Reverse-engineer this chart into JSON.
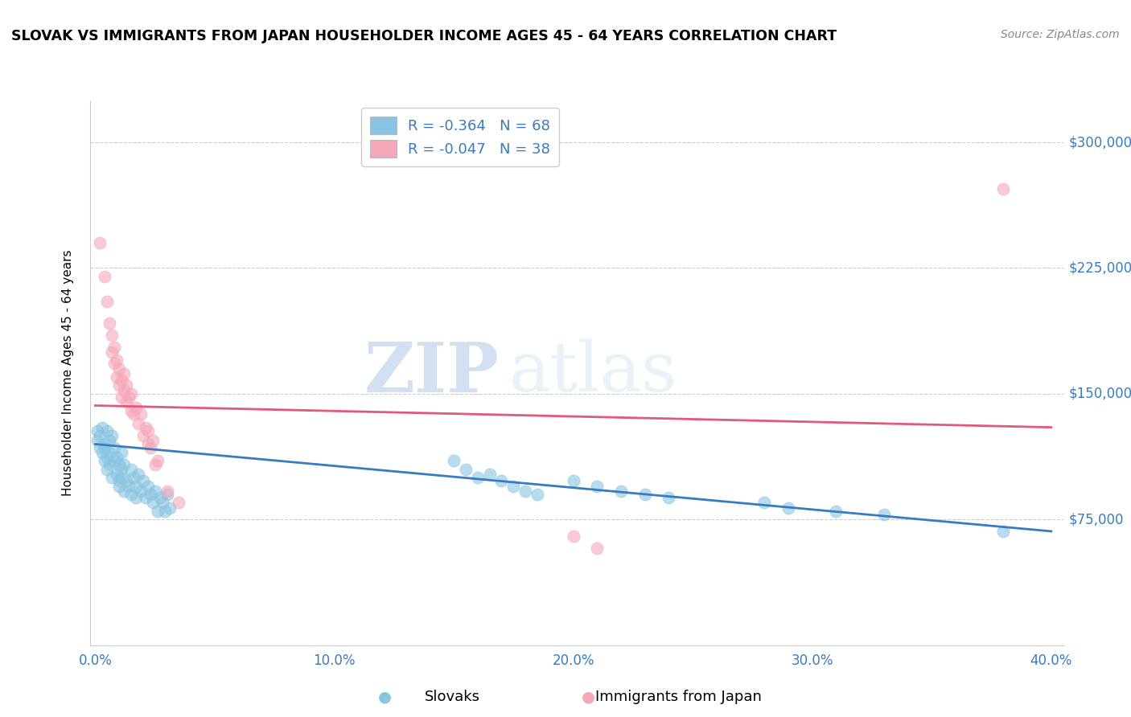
{
  "title": "SLOVAK VS IMMIGRANTS FROM JAPAN HOUSEHOLDER INCOME AGES 45 - 64 YEARS CORRELATION CHART",
  "source": "Source: ZipAtlas.com",
  "ylabel": "Householder Income Ages 45 - 64 years",
  "xlim": [
    -0.002,
    0.405
  ],
  "ylim": [
    0,
    325000
  ],
  "yticks": [
    75000,
    150000,
    225000,
    300000
  ],
  "ytick_labels": [
    "$75,000",
    "$150,000",
    "$225,000",
    "$300,000"
  ],
  "xtick_labels": [
    "0.0%",
    "10.0%",
    "20.0%",
    "30.0%",
    "40.0%"
  ],
  "xticks": [
    0.0,
    0.1,
    0.2,
    0.3,
    0.4
  ],
  "watermark_zip": "ZIP",
  "watermark_atlas": "atlas",
  "legend_r1": "R = -0.364   N = 68",
  "legend_r2": "R = -0.047   N = 38",
  "blue_color": "#89c4e1",
  "pink_color": "#f4a7b9",
  "blue_line_color": "#3a7bbf",
  "pink_line_color": "#e05a7a",
  "text_blue": "#3a7bbf",
  "background_color": "#ffffff",
  "grid_color": "#cccccc",
  "slovaks_scatter": [
    [
      0.001,
      122000
    ],
    [
      0.002,
      118000
    ],
    [
      0.002,
      125000
    ],
    [
      0.003,
      115000
    ],
    [
      0.003,
      130000
    ],
    [
      0.004,
      110000
    ],
    [
      0.004,
      120000
    ],
    [
      0.004,
      118000
    ],
    [
      0.005,
      112000
    ],
    [
      0.005,
      128000
    ],
    [
      0.005,
      105000
    ],
    [
      0.006,
      122000
    ],
    [
      0.006,
      108000
    ],
    [
      0.006,
      115000
    ],
    [
      0.007,
      100000
    ],
    [
      0.007,
      125000
    ],
    [
      0.008,
      110000
    ],
    [
      0.008,
      118000
    ],
    [
      0.009,
      102000
    ],
    [
      0.009,
      112000
    ],
    [
      0.01,
      98000
    ],
    [
      0.01,
      108000
    ],
    [
      0.01,
      95000
    ],
    [
      0.011,
      115000
    ],
    [
      0.011,
      105000
    ],
    [
      0.011,
      100000
    ],
    [
      0.012,
      92000
    ],
    [
      0.012,
      108000
    ],
    [
      0.013,
      98000
    ],
    [
      0.014,
      95000
    ],
    [
      0.015,
      105000
    ],
    [
      0.015,
      90000
    ],
    [
      0.016,
      100000
    ],
    [
      0.017,
      95000
    ],
    [
      0.017,
      88000
    ],
    [
      0.018,
      102000
    ],
    [
      0.019,
      92000
    ],
    [
      0.02,
      98000
    ],
    [
      0.021,
      88000
    ],
    [
      0.022,
      95000
    ],
    [
      0.023,
      90000
    ],
    [
      0.024,
      85000
    ],
    [
      0.025,
      92000
    ],
    [
      0.026,
      80000
    ],
    [
      0.027,
      88000
    ],
    [
      0.028,
      85000
    ],
    [
      0.029,
      80000
    ],
    [
      0.03,
      90000
    ],
    [
      0.031,
      82000
    ],
    [
      0.001,
      128000
    ],
    [
      0.15,
      110000
    ],
    [
      0.155,
      105000
    ],
    [
      0.16,
      100000
    ],
    [
      0.165,
      102000
    ],
    [
      0.17,
      98000
    ],
    [
      0.175,
      95000
    ],
    [
      0.18,
      92000
    ],
    [
      0.185,
      90000
    ],
    [
      0.2,
      98000
    ],
    [
      0.21,
      95000
    ],
    [
      0.22,
      92000
    ],
    [
      0.23,
      90000
    ],
    [
      0.24,
      88000
    ],
    [
      0.28,
      85000
    ],
    [
      0.29,
      82000
    ],
    [
      0.31,
      80000
    ],
    [
      0.33,
      78000
    ],
    [
      0.38,
      68000
    ]
  ],
  "japan_scatter": [
    [
      0.002,
      240000
    ],
    [
      0.004,
      220000
    ],
    [
      0.005,
      205000
    ],
    [
      0.006,
      192000
    ],
    [
      0.007,
      175000
    ],
    [
      0.007,
      185000
    ],
    [
      0.008,
      168000
    ],
    [
      0.008,
      178000
    ],
    [
      0.009,
      160000
    ],
    [
      0.009,
      170000
    ],
    [
      0.01,
      155000
    ],
    [
      0.01,
      165000
    ],
    [
      0.011,
      158000
    ],
    [
      0.011,
      148000
    ],
    [
      0.012,
      152000
    ],
    [
      0.012,
      162000
    ],
    [
      0.013,
      145000
    ],
    [
      0.013,
      155000
    ],
    [
      0.014,
      148000
    ],
    [
      0.015,
      140000
    ],
    [
      0.015,
      150000
    ],
    [
      0.016,
      138000
    ],
    [
      0.017,
      142000
    ],
    [
      0.018,
      132000
    ],
    [
      0.019,
      138000
    ],
    [
      0.02,
      125000
    ],
    [
      0.021,
      130000
    ],
    [
      0.022,
      120000
    ],
    [
      0.022,
      128000
    ],
    [
      0.023,
      118000
    ],
    [
      0.024,
      122000
    ],
    [
      0.026,
      110000
    ],
    [
      0.03,
      92000
    ],
    [
      0.035,
      85000
    ],
    [
      0.2,
      65000
    ],
    [
      0.21,
      58000
    ],
    [
      0.38,
      272000
    ],
    [
      0.025,
      108000
    ]
  ],
  "slovak_line": {
    "x0": 0.0,
    "y0": 120000,
    "x1": 0.4,
    "y1": 68000
  },
  "japan_line": {
    "x0": 0.0,
    "y0": 143000,
    "x1": 0.4,
    "y1": 130000
  }
}
